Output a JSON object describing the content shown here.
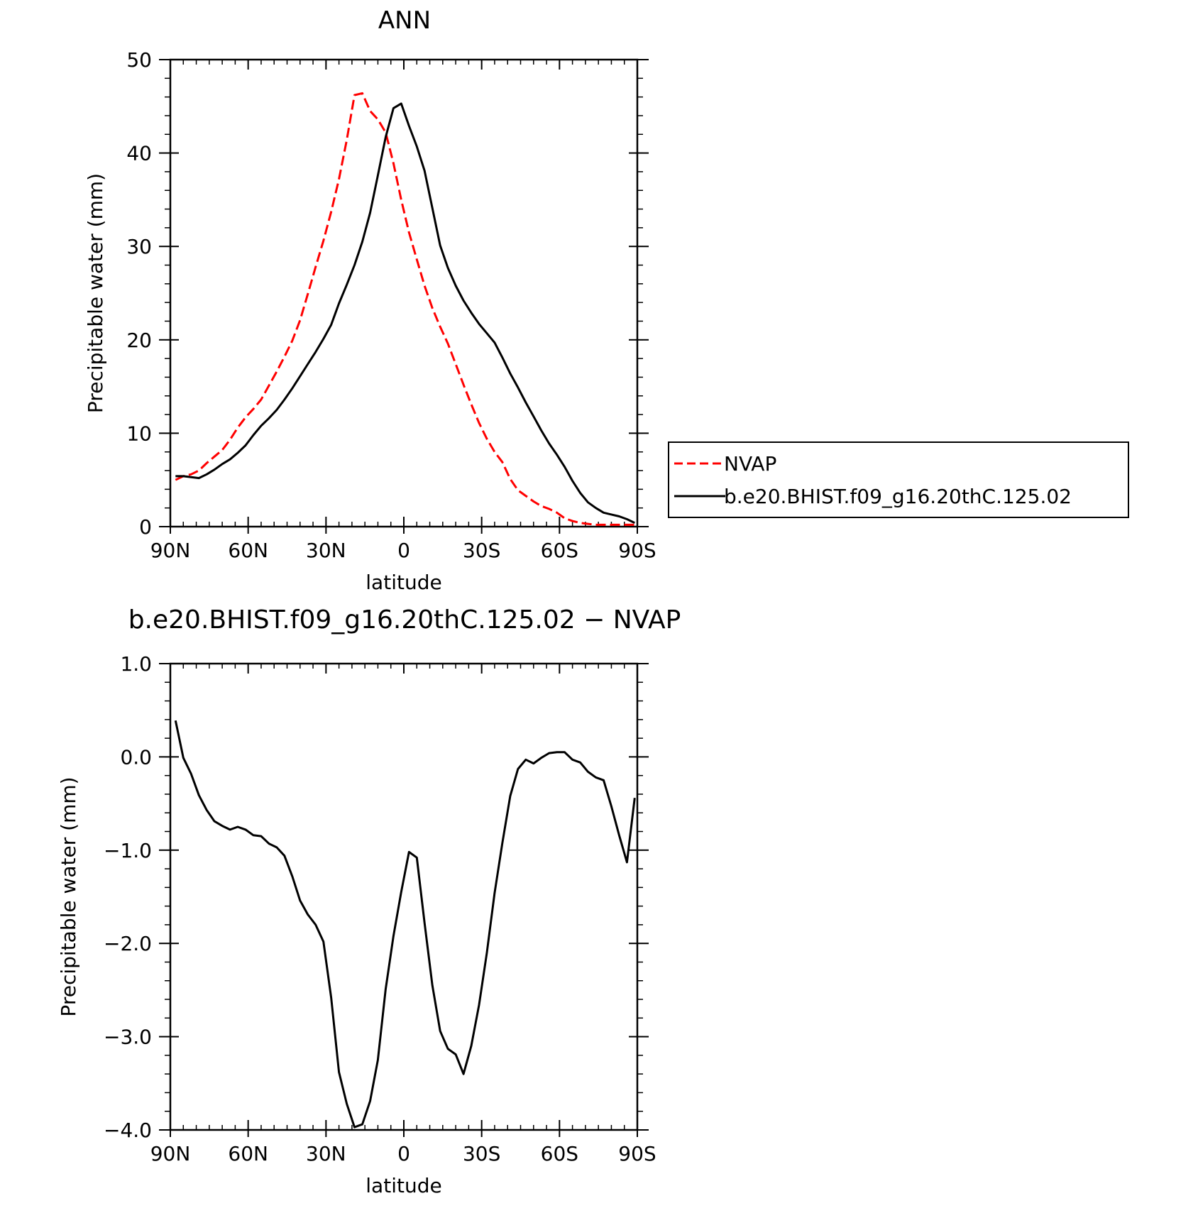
{
  "chart_data": [
    {
      "type": "line",
      "title": "ANN",
      "xlabel": "latitude",
      "ylabel": "Precipitable water (mm)",
      "xlim": [
        90,
        -90
      ],
      "ylim": [
        0,
        50
      ],
      "x_ticks": [
        90,
        60,
        30,
        0,
        -30,
        -60,
        -90
      ],
      "x_tick_labels": [
        "90N",
        "60N",
        "30N",
        "0",
        "30S",
        "60S",
        "90S"
      ],
      "y_ticks": [
        0,
        10,
        20,
        30,
        40,
        50
      ],
      "y_tick_labels": [
        "0",
        "10",
        "20",
        "30",
        "40",
        "50"
      ],
      "grid": false,
      "legend_position": "right",
      "series": [
        {
          "name": "NVAP",
          "color": "#ff0000",
          "dash": "dashed",
          "x": [
            88,
            85,
            82,
            79,
            76,
            73,
            70,
            67,
            64,
            61,
            58,
            55,
            52,
            49,
            46,
            43,
            40,
            37,
            34,
            31,
            28,
            25,
            22,
            19,
            16,
            13,
            10,
            7,
            4,
            1,
            -2,
            -5,
            -8,
            -11,
            -14,
            -17,
            -20,
            -23,
            -26,
            -29,
            -32,
            -35,
            -38,
            -41,
            -44,
            -47,
            -50,
            -53,
            -56,
            -59,
            -62,
            -65,
            -68,
            -71,
            -74,
            -77,
            -80,
            -83,
            -86,
            -89
          ],
          "y": [
            5.0,
            5.4,
            5.6,
            6.0,
            6.8,
            7.5,
            8.2,
            9.3,
            10.6,
            11.7,
            12.6,
            13.6,
            15.1,
            16.6,
            18.2,
            19.9,
            22.1,
            24.9,
            27.8,
            30.6,
            33.7,
            37.2,
            41.4,
            46.2,
            46.4,
            44.5,
            43.6,
            42.2,
            38.9,
            35.0,
            31.5,
            28.6,
            25.8,
            23.4,
            21.4,
            19.6,
            17.4,
            15.2,
            13.1,
            11.1,
            9.4,
            8.0,
            6.9,
            5.1,
            3.9,
            3.3,
            2.7,
            2.2,
            1.9,
            1.5,
            0.9,
            0.6,
            0.4,
            0.3,
            0.2,
            0.2,
            0.2,
            0.2,
            0.2,
            0.2
          ]
        },
        {
          "name": "b.e20.BHIST.f09_g16.20thC.125.02",
          "color": "#000000",
          "dash": "solid",
          "x": [
            88,
            85,
            82,
            79,
            76,
            73,
            70,
            67,
            64,
            61,
            58,
            55,
            52,
            49,
            46,
            43,
            40,
            37,
            34,
            31,
            28,
            25,
            22,
            19,
            16,
            13,
            10,
            7,
            4,
            1,
            -2,
            -5,
            -8,
            -11,
            -14,
            -17,
            -20,
            -23,
            -26,
            -29,
            -32,
            -35,
            -38,
            -41,
            -44,
            -47,
            -50,
            -53,
            -56,
            -59,
            -62,
            -65,
            -68,
            -71,
            -74,
            -77,
            -80,
            -83,
            -86,
            -89
          ],
          "y": [
            5.4,
            5.4,
            5.3,
            5.2,
            5.6,
            6.1,
            6.7,
            7.2,
            7.9,
            8.7,
            9.8,
            10.8,
            11.6,
            12.5,
            13.6,
            14.8,
            16.1,
            17.4,
            18.7,
            20.1,
            21.6,
            23.9,
            25.9,
            28.0,
            30.5,
            33.6,
            37.6,
            41.7,
            44.8,
            45.3,
            42.9,
            40.7,
            38.1,
            34.1,
            30.1,
            27.7,
            25.8,
            24.2,
            22.9,
            21.7,
            20.7,
            19.7,
            18.1,
            16.4,
            14.9,
            13.3,
            11.8,
            10.3,
            8.9,
            7.7,
            6.4,
            4.9,
            3.6,
            2.6,
            2.0,
            1.5,
            1.3,
            1.1,
            0.8,
            0.4
          ]
        }
      ]
    },
    {
      "type": "line",
      "title": "b.e20.BHIST.f09_g16.20thC.125.02 − NVAP",
      "xlabel": "latitude",
      "ylabel": "Precipitable water (mm)",
      "xlim": [
        90,
        -90
      ],
      "ylim": [
        -4.0,
        1.0
      ],
      "x_ticks": [
        90,
        60,
        30,
        0,
        -30,
        -60,
        -90
      ],
      "x_tick_labels": [
        "90N",
        "60N",
        "30N",
        "0",
        "30S",
        "60S",
        "90S"
      ],
      "y_ticks": [
        1.0,
        0.0,
        -1.0,
        -2.0,
        -3.0,
        -4.0
      ],
      "y_tick_labels": [
        "1.0",
        "0.0",
        "−1.0",
        "−2.0",
        "−3.0",
        "−4.0"
      ],
      "grid": false,
      "series": [
        {
          "color": "#000000",
          "dash": "solid",
          "x": [
            88,
            85,
            82,
            79,
            76,
            73,
            70,
            67,
            64,
            61,
            58,
            55,
            52,
            49,
            46,
            43,
            40,
            37,
            34,
            31,
            28,
            25,
            22,
            19,
            16,
            13,
            10,
            7,
            4,
            1,
            -2,
            -5,
            -8,
            -11,
            -14,
            -17,
            -20,
            -23,
            -26,
            -29,
            -32,
            -35,
            -38,
            -41,
            -44,
            -47,
            -50,
            -53,
            -56,
            -59,
            -62,
            -65,
            -68,
            -71,
            -74,
            -77,
            -80,
            -83,
            -86,
            -89
          ],
          "y": [
            0.39,
            -0.01,
            -0.18,
            -0.41,
            -0.57,
            -0.69,
            -0.74,
            -0.78,
            -0.75,
            -0.78,
            -0.84,
            -0.85,
            -0.93,
            -0.97,
            -1.06,
            -1.28,
            -1.54,
            -1.69,
            -1.8,
            -1.98,
            -2.58,
            -3.38,
            -3.72,
            -3.97,
            -3.94,
            -3.69,
            -3.25,
            -2.49,
            -1.92,
            -1.45,
            -1.02,
            -1.08,
            -1.78,
            -2.45,
            -2.94,
            -3.13,
            -3.19,
            -3.4,
            -3.1,
            -2.66,
            -2.1,
            -1.46,
            -0.92,
            -0.42,
            -0.13,
            -0.03,
            -0.07,
            -0.01,
            0.04,
            0.05,
            0.05,
            -0.03,
            -0.06,
            -0.16,
            -0.22,
            -0.25,
            -0.53,
            -0.84,
            -1.13,
            -0.44
          ]
        }
      ]
    }
  ]
}
